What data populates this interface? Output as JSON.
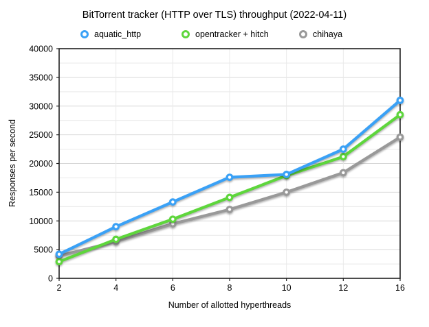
{
  "chart_data": {
    "type": "line",
    "title": "BitTorrent tracker (HTTP over TLS) throughput (2022-04-11)",
    "xlabel": "Number of allotted hyperthreads",
    "ylabel": "Responses per second",
    "categories": [
      "2",
      "4",
      "6",
      "8",
      "10",
      "12",
      "16"
    ],
    "series": [
      {
        "name": "aquatic_http",
        "color": "#3AA1F6",
        "values": [
          4200,
          9000,
          13300,
          17600,
          18100,
          22500,
          31000
        ]
      },
      {
        "name": "opentracker + hitch",
        "color": "#5ED63C",
        "values": [
          2900,
          6800,
          10300,
          14100,
          17900,
          21200,
          28500
        ]
      },
      {
        "name": "chihaya",
        "color": "#999999",
        "values": [
          3900,
          6400,
          9500,
          12000,
          15000,
          18400,
          24600
        ]
      }
    ],
    "ylim": [
      0,
      40000
    ],
    "y_grid_step": 2500,
    "y_label_step": 5000,
    "grid": true,
    "legend_position": "top",
    "colors": {
      "axis_frame": "#1f1f1f",
      "grid_major": "#d7d7d7",
      "grid_minor": "#e9e9e9",
      "background": "#ffffff"
    }
  }
}
